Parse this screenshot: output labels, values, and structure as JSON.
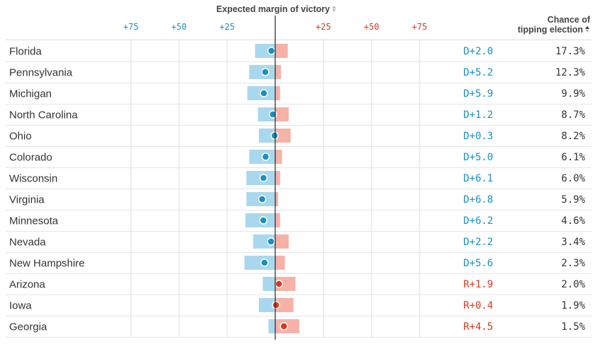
{
  "header": {
    "margin_title": "Expected margin of victory",
    "chance_title_line1": "Chance of",
    "chance_title_line2": "tipping election"
  },
  "colors": {
    "dem": "#1a8fc2",
    "dem_bar": "#a9d8ee",
    "rep": "#d9381e",
    "rep_bar": "#f7b2a8",
    "grid": "#dddddd",
    "zero_line": "#222222"
  },
  "chart_data": {
    "type": "table",
    "axis": {
      "ticks": [
        -75,
        -50,
        -25,
        25,
        50,
        75
      ],
      "tick_labels": [
        "+75",
        "+50",
        "+25",
        "+25",
        "+50",
        "+75"
      ]
    },
    "rows": [
      {
        "state": "Florida",
        "margin": -2.0,
        "low": -10.5,
        "high": 6.5,
        "label": "D+2.0",
        "chance": "17.3%"
      },
      {
        "state": "Pennsylvania",
        "margin": -5.2,
        "low": -13.5,
        "high": 3.0,
        "label": "D+5.2",
        "chance": "12.3%"
      },
      {
        "state": "Michigan",
        "margin": -5.9,
        "low": -14.5,
        "high": 2.5,
        "label": "D+5.9",
        "chance": "9.9%"
      },
      {
        "state": "North Carolina",
        "margin": -1.2,
        "low": -9.0,
        "high": 7.0,
        "label": "D+1.2",
        "chance": "8.7%"
      },
      {
        "state": "Ohio",
        "margin": -0.3,
        "low": -8.5,
        "high": 8.0,
        "label": "D+0.3",
        "chance": "8.2%"
      },
      {
        "state": "Colorado",
        "margin": -5.0,
        "low": -13.5,
        "high": 3.5,
        "label": "D+5.0",
        "chance": "6.1%"
      },
      {
        "state": "Wisconsin",
        "margin": -6.1,
        "low": -15.0,
        "high": 2.5,
        "label": "D+6.1",
        "chance": "6.0%"
      },
      {
        "state": "Virginia",
        "margin": -6.8,
        "low": -15.0,
        "high": 1.5,
        "label": "D+6.8",
        "chance": "5.9%"
      },
      {
        "state": "Minnesota",
        "margin": -6.2,
        "low": -15.5,
        "high": 2.5,
        "label": "D+6.2",
        "chance": "4.6%"
      },
      {
        "state": "Nevada",
        "margin": -2.2,
        "low": -11.5,
        "high": 7.0,
        "label": "D+2.2",
        "chance": "3.4%"
      },
      {
        "state": "New Hampshire",
        "margin": -5.6,
        "low": -16.0,
        "high": 5.0,
        "label": "D+5.6",
        "chance": "2.3%"
      },
      {
        "state": "Arizona",
        "margin": 1.9,
        "low": -6.5,
        "high": 10.5,
        "label": "R+1.9",
        "chance": "2.0%"
      },
      {
        "state": "Iowa",
        "margin": 0.4,
        "low": -8.5,
        "high": 9.5,
        "label": "R+0.4",
        "chance": "1.9%"
      },
      {
        "state": "Georgia",
        "margin": 4.5,
        "low": -3.5,
        "high": 12.5,
        "label": "R+4.5",
        "chance": "1.5%"
      }
    ]
  }
}
